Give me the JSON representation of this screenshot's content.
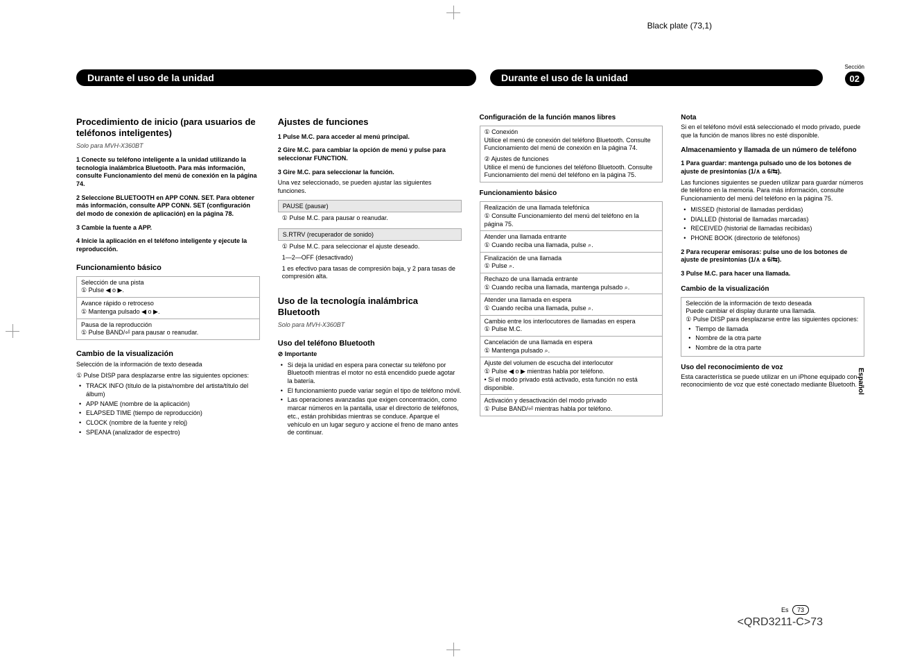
{
  "plate": "Black plate (73,1)",
  "section_label": "Sección",
  "section_num": "02",
  "pill_left": "Durante el uso de la unidad",
  "pill_right": "Durante el uso de la unidad",
  "lang_tab": "Español",
  "col1": {
    "h2": "Procedimiento de inicio (para usuarios de teléfonos inteligentes)",
    "sub": "Solo para MVH-X360BT",
    "s1": "1   Conecte su teléfono inteligente a la unidad utilizando la tecnología inalámbrica Bluetooth. Para más información, consulte Funcionamiento del menú de conexión en la página 74.",
    "s2": "2   Seleccione BLUETOOTH en APP CONN. SET. Para obtener más información, consulte APP CONN. SET (configuración del modo de conexión de aplicación) en la página 78.",
    "s3": "3   Cambie la fuente a APP.",
    "s4": "4   Inicie la aplicación en el teléfono inteligente y ejecute la reproducción.",
    "h3a": "Funcionamiento básico",
    "box1": {
      "r1t": "Selección de una pista",
      "r1b": "① Pulse ◀ o ▶.",
      "r2t": "Avance rápido o retroceso",
      "r2b": "① Mantenga pulsado ◀ o ▶.",
      "r3t": "Pausa de la reproducción",
      "r3b": "① Pulse BAND/⏎ para pausar o reanudar."
    },
    "h3b": "Cambio de la visualización",
    "disp_intro": "Selección de la información de texto deseada",
    "disp1": "① Pulse DISP para desplazarse entre las siguientes opciones:",
    "disp_items": [
      "TRACK INFO (título de la pista/nombre del artista/título del álbum)",
      "APP NAME (nombre de la aplicación)",
      "ELAPSED TIME (tiempo de reproducción)",
      "CLOCK (nombre de la fuente y reloj)",
      "SPEANA (analizador de espectro)"
    ]
  },
  "col2": {
    "h2": "Ajustes de funciones",
    "s1": "1   Pulse M.C. para acceder al menú principal.",
    "s2": "2   Gire M.C. para cambiar la opción de menú y pulse para seleccionar FUNCTION.",
    "s3": "3   Gire M.C. para seleccionar la función.",
    "s3b": "Una vez seleccionado, se pueden ajustar las siguientes funciones.",
    "box_pause_h": "PAUSE (pausar)",
    "box_pause_r": "① Pulse M.C. para pausar o reanudar.",
    "box_srtrv_h": "S.RTRV (recuperador de sonido)",
    "box_srtrv_r1": "① Pulse M.C. para seleccionar el ajuste deseado.",
    "box_srtrv_r2": "1—2—OFF (desactivado)",
    "box_srtrv_r3": "1 es efectivo para tasas de compresión baja, y 2 para tasas de compresión alta.",
    "h2b": "Uso de la tecnología inalámbrica Bluetooth",
    "sub": "Solo para MVH-X360BT",
    "h3": "Uso del teléfono Bluetooth",
    "imp": "⊘ Importante",
    "b1": "Si deja la unidad en espera para conectar su teléfono por Bluetooth mientras el motor no está encendido puede agotar la batería.",
    "b2": "El funcionamiento puede variar según el tipo de teléfono móvil.",
    "b3": "Las operaciones avanzadas que exigen concentración, como marcar números en la pantalla, usar el directorio de teléfonos, etc., están prohibidas mientras se conduce. Aparque el vehículo en un lugar seguro y accione el freno de mano antes de continuar."
  },
  "col3": {
    "h4a": "Configuración de la función manos libres",
    "cfg": {
      "r1": "① Conexión",
      "r1b": "Utilice el menú de conexión del teléfono Bluetooth. Consulte Funcionamiento del menú de conexión en la página 74.",
      "r2": "② Ajustes de funciones",
      "r2b": "Utilice el menú de funciones del teléfono Bluetooth. Consulte Funcionamiento del menú del teléfono en la página 75."
    },
    "h4b": "Funcionamiento básico",
    "ops": [
      {
        "t": "Realización de una llamada telefónica",
        "b": "① Consulte Funcionamiento del menú del teléfono en la página 75."
      },
      {
        "t": "Atender una llamada entrante",
        "b": "① Cuando reciba una llamada, pulse ⌕."
      },
      {
        "t": "Finalización de una llamada",
        "b": "① Pulse ⌕."
      },
      {
        "t": "Rechazo de una llamada entrante",
        "b": "① Cuando reciba una llamada, mantenga pulsado ⌕."
      },
      {
        "t": "Atender una llamada en espera",
        "b": "① Cuando reciba una llamada, pulse ⌕."
      },
      {
        "t": "Cambio entre los interlocutores de llamadas en espera",
        "b": "① Pulse M.C."
      },
      {
        "t": "Cancelación de una llamada en espera",
        "b": "① Mantenga pulsado ⌕."
      },
      {
        "t": "Ajuste del volumen de escucha del interlocutor",
        "b": "① Pulse ◀ o ▶ mientras habla por teléfono.\n• Si el modo privado está activado, esta función no está disponible."
      },
      {
        "t": "Activación y desactivación del modo privado",
        "b": "① Pulse BAND/⏎ mientras habla por teléfono."
      }
    ]
  },
  "col4": {
    "h4a": "Nota",
    "nota": "Si en el teléfono móvil está seleccionado el modo privado, puede que la función de manos libres no esté disponible.",
    "h4b": "Almacenamiento y llamada de un número de teléfono",
    "s1": "1   Para guardar: mantenga pulsado uno de los botones de ajuste de presintonías (1/∧ a 6/⇆).",
    "s1b": "Las funciones siguientes se pueden utilizar para guardar números de teléfono en la memoria. Para más información, consulte Funcionamiento del menú del teléfono en la página 75.",
    "store_items": [
      "MISSED (historial de llamadas perdidas)",
      "DIALLED (historial de llamadas marcadas)",
      "RECEIVED (historial de llamadas recibidas)",
      "PHONE BOOK (directorio de teléfonos)"
    ],
    "s2": "2   Para recuperar emisoras: pulse uno de los botones de ajuste de presintonías (1/∧ a 6/⇆).",
    "s3": "3   Pulse M.C. para hacer una llamada.",
    "h4c": "Cambio de la visualización",
    "disp_t": "Selección de la información de texto deseada",
    "disp_b": "Puede cambiar el display durante una llamada.",
    "disp1": "① Pulse DISP para desplazarse entre las siguientes opciones:",
    "disp_items": [
      "Tiempo de llamada",
      "Nombre de la otra parte",
      "Nombre de la otra parte"
    ],
    "h4d": "Uso del reconocimiento de voz",
    "voz": "Esta característica se puede utilizar en un iPhone equipado con reconocimiento de voz que esté conectado mediante Bluetooth."
  },
  "footer": {
    "lang": "Es",
    "page": "73",
    "code": "<QRD3211-C>73"
  }
}
